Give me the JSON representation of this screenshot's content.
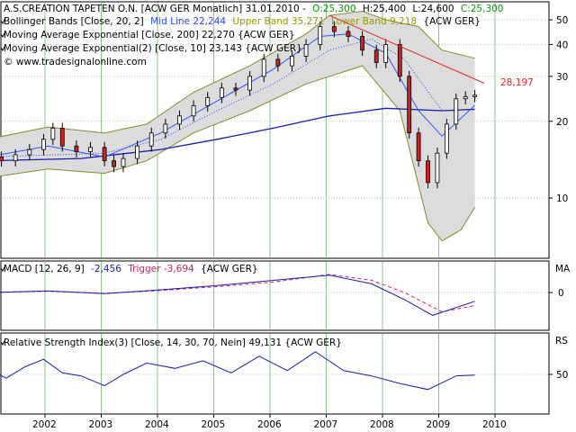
{
  "colors": {
    "grid_v": "#8cc08c",
    "grid_h": "#bdbdbd",
    "up_candle": "#ffffff",
    "down_candle": "#cc2222",
    "band_fill": "#dcdcdc",
    "band_line": "#8a8a2a",
    "mid_line": "#2a4aff",
    "ema200": "#1a1ab0",
    "ema10": "#3355ff",
    "macd": "#1a1ab0",
    "trigger": "#cc2266",
    "trend": "#ee2222",
    "rsi": "#1a1ab0",
    "close_green": "#009900",
    "upper_olive": "#9a9a00"
  },
  "legend": {
    "title": "A.S.CREATION TAPETEN O.N. [ACW GER  Monatlich] 31.01.2010 -",
    "ohlc": {
      "o": "O:25,300",
      "h": "H:25,400",
      "l": "L:24,600",
      "c": "C:25,300"
    },
    "bb_prefix": "Bollinger Bands [Close, 20, 2]",
    "bb_mid": "Mid Line 22,244",
    "bb_upper": "Upper Band 35,271",
    "bb_lower": "Lower Band 9,218",
    "bb_suffix": "{ACW GER}",
    "ema200": "Moving Average Exponential [Close, 200] 22,270 {ACW GER}",
    "ema10": "Moving Average Exponential(2) [Close, 10] 23,143 {ACW GER}",
    "copyright": "© www.tradesignalonline.com"
  },
  "panel_labels": {
    "macd_prefix": "MACD [12, 26, 9]",
    "macd_value": "-2,456",
    "trigger": "Trigger -3,694",
    "macd_suffix": "{ACW GER}",
    "macd_axis": "MA",
    "rsi": "Relative Strength Index(3) [Close, 14, 30, 70, Nein] 49,131 {ACW GER}",
    "rsi_axis": "RS"
  },
  "trend_label": "28,197",
  "chart_data": {
    "type": "candlestick",
    "title": "A.S.CREATION TAPETEN O.N. [ACW GER  Monatlich]",
    "interval": "monthly",
    "x_ticks": [
      "2002",
      "2003",
      "2004",
      "2005",
      "2006",
      "2007",
      "2008",
      "2009",
      "2010"
    ],
    "price_axis": {
      "scale": "log",
      "range": [
        6,
        56
      ],
      "ticks": [
        10,
        20,
        30,
        40,
        50
      ]
    },
    "price_closes": [
      {
        "date": "2001-05",
        "close": 14.5
      },
      {
        "date": "2001-08",
        "close": 14.0
      },
      {
        "date": "2001-11",
        "close": 14.8
      },
      {
        "date": "2002-02",
        "close": 15.5
      },
      {
        "date": "2002-05",
        "close": 17.0
      },
      {
        "date": "2002-07",
        "close": 18.8
      },
      {
        "date": "2002-09",
        "close": 16.0
      },
      {
        "date": "2002-12",
        "close": 15.2
      },
      {
        "date": "2003-03",
        "close": 15.8
      },
      {
        "date": "2003-06",
        "close": 14.0
      },
      {
        "date": "2003-08",
        "close": 13.3
      },
      {
        "date": "2003-10",
        "close": 14.3
      },
      {
        "date": "2004-01",
        "close": 16.0
      },
      {
        "date": "2004-04",
        "close": 18.0
      },
      {
        "date": "2004-07",
        "close": 19.5
      },
      {
        "date": "2004-10",
        "close": 21.0
      },
      {
        "date": "2005-01",
        "close": 23.0
      },
      {
        "date": "2005-04",
        "close": 24.8
      },
      {
        "date": "2005-07",
        "close": 27.0
      },
      {
        "date": "2005-10",
        "close": 26.5
      },
      {
        "date": "2006-01",
        "close": 30.0
      },
      {
        "date": "2006-04",
        "close": 35.0
      },
      {
        "date": "2006-07",
        "close": 33.0
      },
      {
        "date": "2006-10",
        "close": 36.0
      },
      {
        "date": "2007-01",
        "close": 40.0
      },
      {
        "date": "2007-04",
        "close": 47.0
      },
      {
        "date": "2007-07",
        "close": 45.0
      },
      {
        "date": "2007-10",
        "close": 43.0
      },
      {
        "date": "2008-01",
        "close": 38.0
      },
      {
        "date": "2008-04",
        "close": 34.0
      },
      {
        "date": "2008-06",
        "close": 40.0
      },
      {
        "date": "2008-09",
        "close": 30.0
      },
      {
        "date": "2008-11",
        "close": 18.0
      },
      {
        "date": "2009-01",
        "close": 14.0
      },
      {
        "date": "2009-03",
        "close": 11.5
      },
      {
        "date": "2009-05",
        "close": 15.0
      },
      {
        "date": "2009-07",
        "close": 19.5
      },
      {
        "date": "2009-09",
        "close": 24.5
      },
      {
        "date": "2009-11",
        "close": 25.0
      },
      {
        "date": "2010-01",
        "close": 25.3
      }
    ],
    "bollinger_upper": [
      {
        "date": "2001-05",
        "v": 17.0
      },
      {
        "date": "2002-06",
        "v": 19.0
      },
      {
        "date": "2003-06",
        "v": 18.0
      },
      {
        "date": "2004-03",
        "v": 19.5
      },
      {
        "date": "2005-01",
        "v": 26.0
      },
      {
        "date": "2006-01",
        "v": 33.0
      },
      {
        "date": "2007-01",
        "v": 44.0
      },
      {
        "date": "2007-06",
        "v": 52.0
      },
      {
        "date": "2008-01",
        "v": 54.0
      },
      {
        "date": "2008-06",
        "v": 50.0
      },
      {
        "date": "2009-01",
        "v": 47.0
      },
      {
        "date": "2009-06",
        "v": 38.0
      },
      {
        "date": "2010-01",
        "v": 35.3
      }
    ],
    "bollinger_lower": [
      {
        "date": "2001-05",
        "v": 12.0
      },
      {
        "date": "2002-06",
        "v": 13.0
      },
      {
        "date": "2003-06",
        "v": 12.5
      },
      {
        "date": "2004-03",
        "v": 14.0
      },
      {
        "date": "2005-01",
        "v": 18.0
      },
      {
        "date": "2006-01",
        "v": 22.0
      },
      {
        "date": "2007-01",
        "v": 28.0
      },
      {
        "date": "2008-01",
        "v": 33.0
      },
      {
        "date": "2008-09",
        "v": 22.0
      },
      {
        "date": "2009-03",
        "v": 8.0
      },
      {
        "date": "2009-06",
        "v": 6.8
      },
      {
        "date": "2009-10",
        "v": 7.5
      },
      {
        "date": "2010-01",
        "v": 9.2
      }
    ],
    "bollinger_mid": [
      {
        "date": "2001-05",
        "v": 14.5
      },
      {
        "date": "2003-06",
        "v": 15.0
      },
      {
        "date": "2004-06",
        "v": 17.0
      },
      {
        "date": "2005-06",
        "v": 22.0
      },
      {
        "date": "2006-06",
        "v": 28.0
      },
      {
        "date": "2007-06",
        "v": 38.0
      },
      {
        "date": "2008-03",
        "v": 42.0
      },
      {
        "date": "2008-10",
        "v": 35.0
      },
      {
        "date": "2009-06",
        "v": 22.0
      },
      {
        "date": "2010-01",
        "v": 22.2
      }
    ],
    "ema200": [
      {
        "date": "2001-05",
        "v": 14.0
      },
      {
        "date": "2003-01",
        "v": 14.3
      },
      {
        "date": "2004-06",
        "v": 15.5
      },
      {
        "date": "2005-06",
        "v": 17.0
      },
      {
        "date": "2006-06",
        "v": 18.8
      },
      {
        "date": "2007-06",
        "v": 21.0
      },
      {
        "date": "2008-06",
        "v": 22.5
      },
      {
        "date": "2009-06",
        "v": 22.0
      },
      {
        "date": "2010-01",
        "v": 22.3
      }
    ],
    "ema10": [
      {
        "date": "2001-05",
        "v": 14.5
      },
      {
        "date": "2002-06",
        "v": 16.0
      },
      {
        "date": "2003-06",
        "v": 14.5
      },
      {
        "date": "2004-06",
        "v": 18.0
      },
      {
        "date": "2005-06",
        "v": 24.0
      },
      {
        "date": "2006-06",
        "v": 32.0
      },
      {
        "date": "2007-04",
        "v": 43.0
      },
      {
        "date": "2007-10",
        "v": 44.0
      },
      {
        "date": "2008-06",
        "v": 37.0
      },
      {
        "date": "2009-01",
        "v": 22.0
      },
      {
        "date": "2009-06",
        "v": 17.5
      },
      {
        "date": "2010-01",
        "v": 23.1
      }
    ],
    "trendline": [
      {
        "date": "2007-06",
        "v": 52.0
      },
      {
        "date": "2010-03",
        "v": 28.2
      }
    ],
    "macd": {
      "ticks": [
        0
      ],
      "range": [
        -10,
        8
      ],
      "macd": [
        {
          "date": "2001-05",
          "v": 0.0
        },
        {
          "date": "2002-06",
          "v": 0.5
        },
        {
          "date": "2003-06",
          "v": -0.3
        },
        {
          "date": "2004-06",
          "v": 0.8
        },
        {
          "date": "2005-06",
          "v": 2.0
        },
        {
          "date": "2006-06",
          "v": 3.5
        },
        {
          "date": "2007-06",
          "v": 5.0
        },
        {
          "date": "2008-03",
          "v": 2.5
        },
        {
          "date": "2008-10",
          "v": -2.0
        },
        {
          "date": "2009-04",
          "v": -6.5
        },
        {
          "date": "2010-01",
          "v": -2.5
        }
      ],
      "trigger": [
        {
          "date": "2001-05",
          "v": 0.0
        },
        {
          "date": "2002-06",
          "v": 0.4
        },
        {
          "date": "2003-06",
          "v": -0.2
        },
        {
          "date": "2004-06",
          "v": 0.6
        },
        {
          "date": "2005-06",
          "v": 1.7
        },
        {
          "date": "2006-06",
          "v": 3.0
        },
        {
          "date": "2007-06",
          "v": 5.2
        },
        {
          "date": "2008-03",
          "v": 3.5
        },
        {
          "date": "2008-10",
          "v": 0.0
        },
        {
          "date": "2009-06",
          "v": -5.5
        },
        {
          "date": "2010-01",
          "v": -3.7
        }
      ]
    },
    "rsi": {
      "ticks": [
        50
      ],
      "range": [
        0,
        100
      ],
      "values": [
        {
          "date": "2001-05",
          "v": 58
        },
        {
          "date": "2001-09",
          "v": 45
        },
        {
          "date": "2002-01",
          "v": 60
        },
        {
          "date": "2002-05",
          "v": 70
        },
        {
          "date": "2002-09",
          "v": 52
        },
        {
          "date": "2003-01",
          "v": 48
        },
        {
          "date": "2003-06",
          "v": 35
        },
        {
          "date": "2003-10",
          "v": 50
        },
        {
          "date": "2004-03",
          "v": 65
        },
        {
          "date": "2004-09",
          "v": 58
        },
        {
          "date": "2005-03",
          "v": 68
        },
        {
          "date": "2005-09",
          "v": 52
        },
        {
          "date": "2006-03",
          "v": 74
        },
        {
          "date": "2006-09",
          "v": 55
        },
        {
          "date": "2007-03",
          "v": 80
        },
        {
          "date": "2007-09",
          "v": 55
        },
        {
          "date": "2008-03",
          "v": 48
        },
        {
          "date": "2008-09",
          "v": 38
        },
        {
          "date": "2009-03",
          "v": 30
        },
        {
          "date": "2009-09",
          "v": 48
        },
        {
          "date": "2010-01",
          "v": 49.1
        }
      ]
    }
  }
}
